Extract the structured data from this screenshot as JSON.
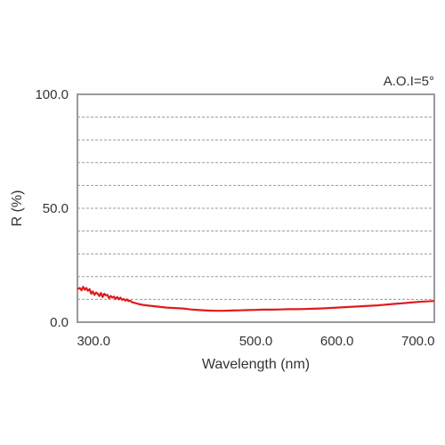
{
  "chart_data": {
    "type": "line",
    "title": "",
    "annotation": "A.O.I=5°",
    "xlabel": "Wavelength (nm)",
    "ylabel": "R (%)",
    "xlim": [
      280,
      720
    ],
    "ylim": [
      0,
      100
    ],
    "x_ticks": [
      300,
      500,
      600,
      700
    ],
    "x_tick_labels": [
      "300.0",
      "500.0",
      "600.0",
      "700.0"
    ],
    "y_ticks": [
      0,
      50,
      100
    ],
    "y_tick_labels": [
      "0.0",
      "50.0",
      "100.0"
    ],
    "grid": {
      "horizontal": true,
      "vertical": false,
      "step": 10,
      "style": "dashed"
    },
    "colors": {
      "series": "#e01b1b",
      "frame": "#9a9a9a",
      "grid": "#9a9a9a"
    },
    "series": [
      {
        "x": [
          280,
          283,
          285,
          287,
          289,
          291,
          293,
          295,
          297,
          299,
          301,
          303,
          305,
          307,
          309,
          311,
          313,
          315,
          317,
          319,
          321,
          323,
          325,
          327,
          329,
          331,
          333,
          335,
          337,
          339,
          341,
          343,
          345,
          347,
          350,
          355,
          360,
          365,
          370,
          380,
          390,
          400,
          410,
          420,
          430,
          440,
          450,
          460,
          470,
          480,
          490,
          500,
          510,
          520,
          530,
          540,
          550,
          560,
          570,
          580,
          590,
          600,
          610,
          620,
          630,
          640,
          650,
          660,
          670,
          680,
          690,
          700,
          710,
          720
        ],
        "y": [
          14.5,
          15.0,
          14.0,
          15.5,
          14.2,
          15.0,
          13.8,
          14.5,
          12.5,
          13.5,
          12.0,
          13.0,
          12.5,
          11.5,
          12.8,
          11.0,
          12.5,
          11.8,
          12.0,
          10.5,
          11.5,
          10.8,
          11.2,
          10.2,
          11.0,
          10.0,
          10.8,
          9.8,
          10.2,
          9.5,
          10.0,
          9.2,
          9.5,
          8.8,
          8.5,
          8.0,
          7.6,
          7.4,
          7.2,
          6.8,
          6.4,
          6.2,
          6.0,
          5.6,
          5.3,
          5.1,
          5.0,
          5.0,
          5.1,
          5.2,
          5.3,
          5.4,
          5.5,
          5.5,
          5.6,
          5.7,
          5.7,
          5.8,
          5.9,
          6.0,
          6.2,
          6.4,
          6.6,
          6.8,
          7.0,
          7.2,
          7.4,
          7.7,
          8.0,
          8.3,
          8.6,
          8.9,
          9.1,
          9.3
        ]
      }
    ]
  }
}
